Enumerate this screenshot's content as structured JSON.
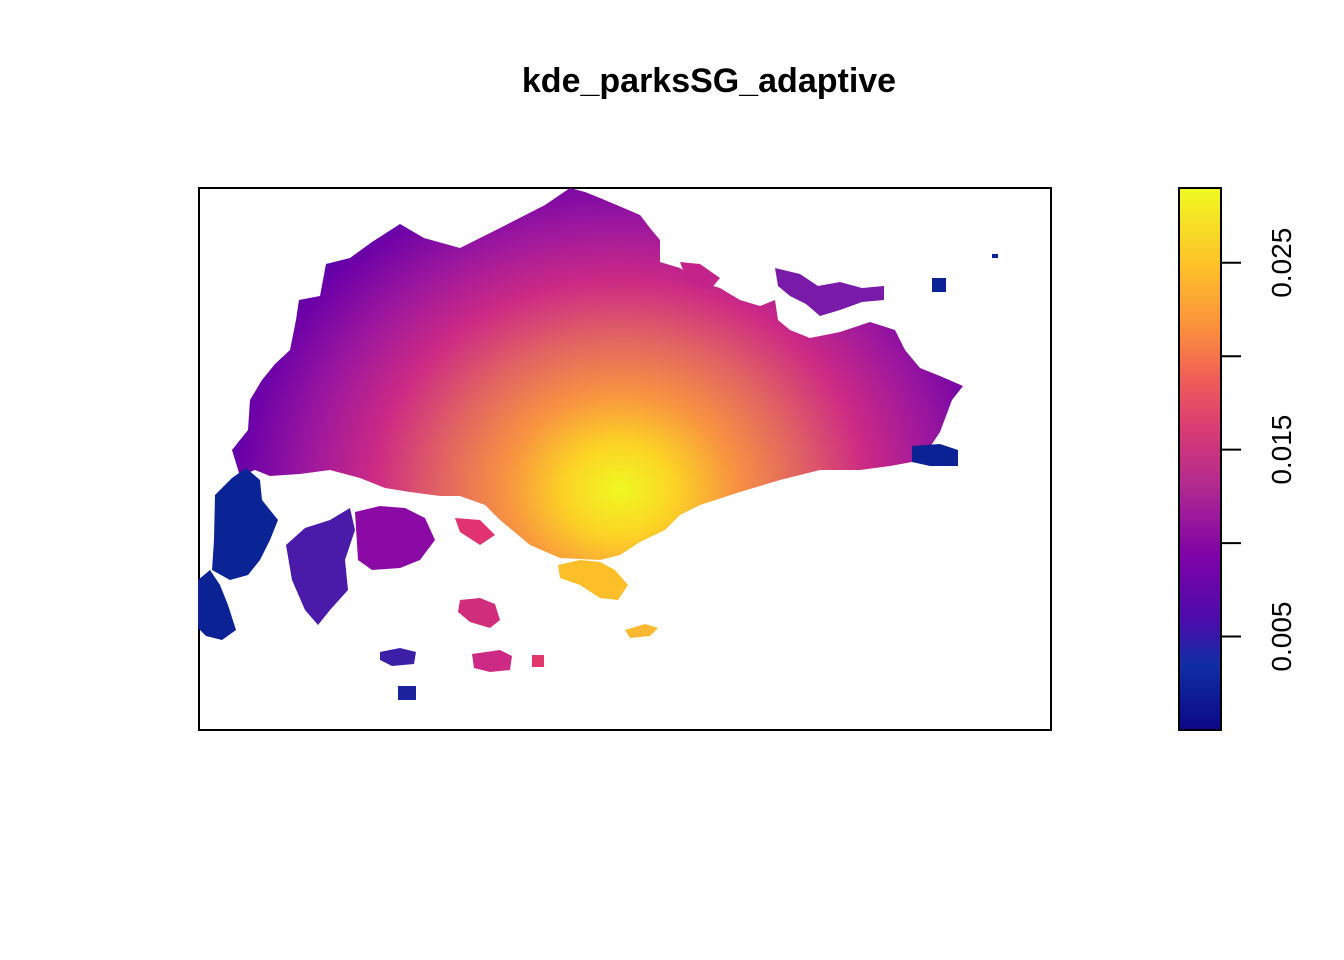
{
  "chart_data": {
    "type": "heatmap",
    "title": "kde_parksSG_adaptive",
    "xlabel": "",
    "ylabel": "",
    "axes_shown": false,
    "legend": {
      "type": "colorbar",
      "placement": "right",
      "range": [
        0.0,
        0.029
      ],
      "ticks": [
        {
          "value": 0.005,
          "label": "0.005"
        },
        {
          "value": 0.01,
          "label": ""
        },
        {
          "value": 0.015,
          "label": "0.015"
        },
        {
          "value": 0.02,
          "label": ""
        },
        {
          "value": 0.025,
          "label": "0.025"
        }
      ]
    },
    "colormap": [
      "#0d0887",
      "#2a1a9c",
      "#5b08a7",
      "#8b0aa5",
      "#b83289",
      "#db5c68",
      "#f48849",
      "#febc2a",
      "#f0f921"
    ],
    "colormap_name": "plasma",
    "density_peak": 0.029,
    "regions": "Singapore main island with surrounding islets; density highest in south-central area"
  }
}
